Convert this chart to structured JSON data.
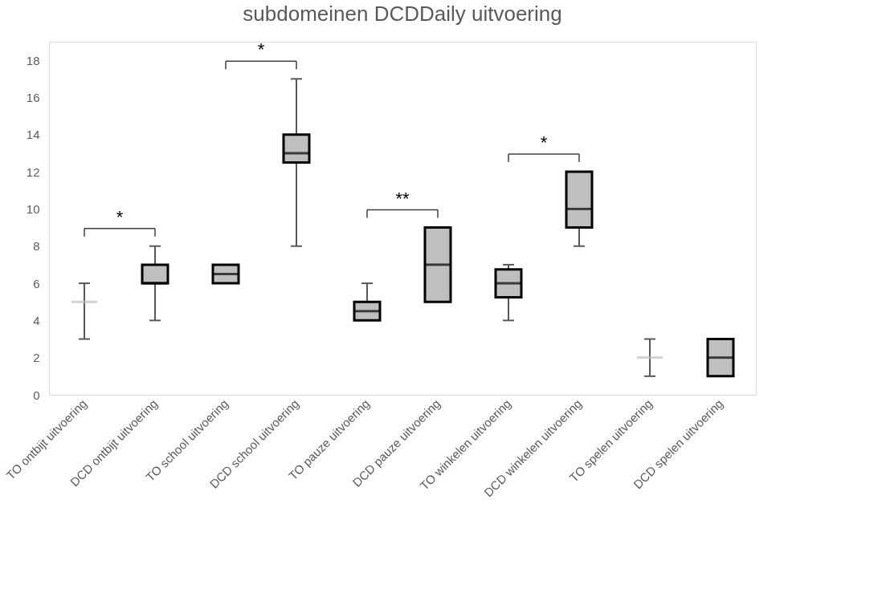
{
  "chart_data": {
    "type": "box",
    "title": "subdomeinen DCDDaily uitvoering",
    "categories": [
      "TO ontbijt uitvoering",
      "DCD ontbijt uitvoering",
      "TO school uitvoering",
      "DCD school uitvoering",
      "TO pauze uitvoering",
      "DCD pauze uitvoering",
      "TO winkelen uitvoering",
      "DCD winkelen uitvoering",
      "TO spelen uitvoering",
      "DCD spelen uitvoering"
    ],
    "series": [
      {
        "color": "#bfbfbf",
        "boxes": [
          {
            "low": 3,
            "q1": 5,
            "median": 5,
            "q3": 5,
            "high": 6
          },
          {
            "low": 4,
            "q1": 6,
            "median": 6,
            "q3": 7,
            "high": 8
          },
          {
            "low": 6,
            "q1": 6,
            "median": 6.5,
            "q3": 7,
            "high": 7
          },
          {
            "low": 8,
            "q1": 12.5,
            "median": 13,
            "q3": 14,
            "high": 17
          },
          {
            "low": 4,
            "q1": 4,
            "median": 4.5,
            "q3": 5,
            "high": 6
          },
          {
            "low": 5,
            "q1": 5,
            "median": 7,
            "q3": 9,
            "high": 9
          },
          {
            "low": 4,
            "q1": 5.25,
            "median": 6,
            "q3": 6.75,
            "high": 7
          },
          {
            "low": 8,
            "q1": 9,
            "median": 10,
            "q3": 12,
            "high": 12
          },
          {
            "low": 1,
            "q1": 2,
            "median": 2,
            "q3": 2,
            "high": 3
          },
          {
            "low": 1,
            "q1": 1,
            "median": 2,
            "q3": 3,
            "high": 3
          }
        ]
      }
    ],
    "ylim": [
      0,
      19
    ],
    "yticks": [
      0,
      2,
      4,
      6,
      8,
      10,
      12,
      14,
      16,
      18
    ],
    "grid": false,
    "annotations": [
      "*",
      "*",
      "**",
      "*"
    ]
  }
}
